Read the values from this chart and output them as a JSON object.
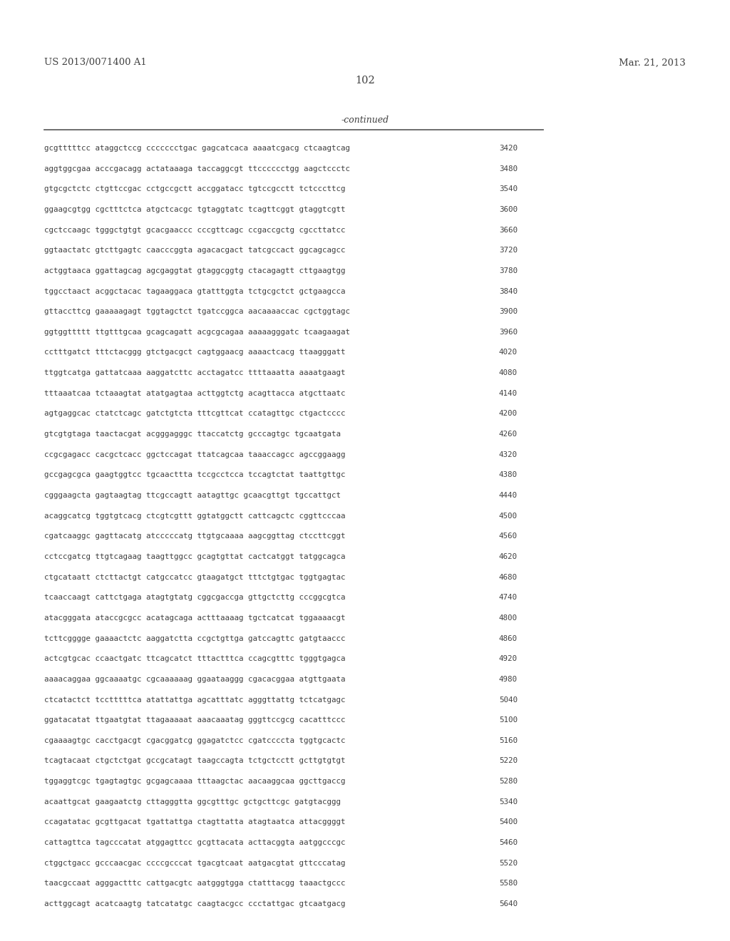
{
  "header_left": "US 2013/0071400 A1",
  "header_right": "Mar. 21, 2013",
  "page_number": "102",
  "continued_label": "-continued",
  "background_color": "#ffffff",
  "text_color": "#404040",
  "header_fontsize": 9.5,
  "page_fontsize": 10.5,
  "continued_fontsize": 9.0,
  "sequence_fontsize": 7.8,
  "sequences": [
    [
      "gcgtttttcc ataggctccg ccccccctgac gagcatcaca aaaatcgacg ctcaagtcag",
      "3420"
    ],
    [
      "aggtggcgaa acccgacagg actataaaga taccaggcgt ttcccccctgg aagctccctc",
      "3480"
    ],
    [
      "gtgcgctctc ctgttccgac cctgccgctt accggatacc tgtccgcctt tctcccttcg",
      "3540"
    ],
    [
      "ggaagcgtgg cgctttctca atgctcacgc tgtaggtatc tcagttcggt gtaggtcgtt",
      "3600"
    ],
    [
      "cgctccaagc tgggctgtgt gcacgaaccc cccgttcagc ccgaccgctg cgccttatcc",
      "3660"
    ],
    [
      "ggtaactatc gtcttgagtc caacccggta agacacgact tatcgccact ggcagcagcc",
      "3720"
    ],
    [
      "actggtaaca ggattagcag agcgaggtat gtaggcggtg ctacagagtt cttgaagtgg",
      "3780"
    ],
    [
      "tggcctaact acggctacac tagaaggaca gtatttggta tctgcgctct gctgaagcca",
      "3840"
    ],
    [
      "gttaccttcg gaaaaagagt tggtagctct tgatccggca aacaaaaccac cgctggtagc",
      "3900"
    ],
    [
      "ggtggttttt ttgtttgcaa gcagcagatt acgcgcagaa aaaaagggatc tcaagaagat",
      "3960"
    ],
    [
      "cctttgatct tttctacggg gtctgacgct cagtggaacg aaaactcacg ttaagggatt",
      "4020"
    ],
    [
      "ttggtcatga gattatcaaa aaggatcttc acctagatcc ttttaaatta aaaatgaagt",
      "4080"
    ],
    [
      "tttaaatcaa tctaaagtat atatgagtaa acttggtctg acagttacca atgcttaatc",
      "4140"
    ],
    [
      "agtgaggcac ctatctcagc gatctgtcta tttcgttcat ccatagttgc ctgactcccc",
      "4200"
    ],
    [
      "gtcgtgtaga taactacgat acgggagggc ttaccatctg gcccagtgc tgcaatgata",
      "4260"
    ],
    [
      "ccgcgagacc cacgctcacc ggctccagat ttatcagcaa taaaccagcc agccggaagg",
      "4320"
    ],
    [
      "gccgagcgca gaagtggtcc tgcaacttta tccgcctcca tccagtctat taattgttgc",
      "4380"
    ],
    [
      "cgggaagcta gagtaagtag ttcgccagtt aatagttgc gcaacgttgt tgccattgct",
      "4440"
    ],
    [
      "acaggcatcg tggtgtcacg ctcgtcgttt ggtatggctt cattcagctc cggttcccaa",
      "4500"
    ],
    [
      "cgatcaaggc gagttacatg atcccccatg ttgtgcaaaa aagcggttag ctccttcggt",
      "4560"
    ],
    [
      "cctccgatcg ttgtcagaag taagttggcc gcagtgttat cactcatggt tatggcagca",
      "4620"
    ],
    [
      "ctgcataatt ctcttactgt catgccatcc gtaagatgct tttctgtgac tggtgagtac",
      "4680"
    ],
    [
      "tcaaccaagt cattctgaga atagtgtatg cggcgaccga gttgctcttg cccggcgtca",
      "4740"
    ],
    [
      "atacgggata ataccgcgcc acatagcaga actttaaaag tgctcatcat tggaaaacgt",
      "4800"
    ],
    [
      "tcttcgggge gaaaactctc aaggatctta ccgctgttga gatccagttc gatgtaaccc",
      "4860"
    ],
    [
      "actcgtgcac ccaactgatc ttcagcatct tttactttca ccagcgtttc tgggtgagca",
      "4920"
    ],
    [
      "aaaacaggaa ggcaaaatgc cgcaaaaaag ggaataaggg cgacacggaa atgttgaata",
      "4980"
    ],
    [
      "ctcatactct tcctttttca atattattga agcatttatc agggttattg tctcatgagc",
      "5040"
    ],
    [
      "ggatacatat ttgaatgtat ttagaaaaat aaacaaatag gggttccgcg cacatttccc",
      "5100"
    ],
    [
      "cgaaaagtgc cacctgacgt cgacggatcg ggagatctcc cgatccccta tggtgcactc",
      "5160"
    ],
    [
      "tcagtacaat ctgctctgat gccgcatagt taagccagta tctgctcctt gcttgtgtgt",
      "5220"
    ],
    [
      "tggaggtcgc tgagtagtgc gcgagcaaaa tttaagctac aacaaggcaa ggcttgaccg",
      "5280"
    ],
    [
      "acaattgcat gaagaatctg cttagggtta ggcgtttgc gctgcttcgc gatgtacggg",
      "5340"
    ],
    [
      "ccagatatac gcgttgacat tgattattga ctagttatta atagtaatca attacggggt",
      "5400"
    ],
    [
      "cattagttca tagcccatat atggagttcc gcgttacata acttacggta aatggcccgc",
      "5460"
    ],
    [
      "ctggctgacc gcccaacgac ccccgcccat tgacgtcaat aatgacgtat gttcccatag",
      "5520"
    ],
    [
      "taacgccaat agggactttc cattgacgtc aatgggtgga ctatttacgg taaactgccc",
      "5580"
    ],
    [
      "acttggcagt acatcaagtg tatcatatgc caagtacgcc ccctattgac gtcaatgacg",
      "5640"
    ]
  ]
}
